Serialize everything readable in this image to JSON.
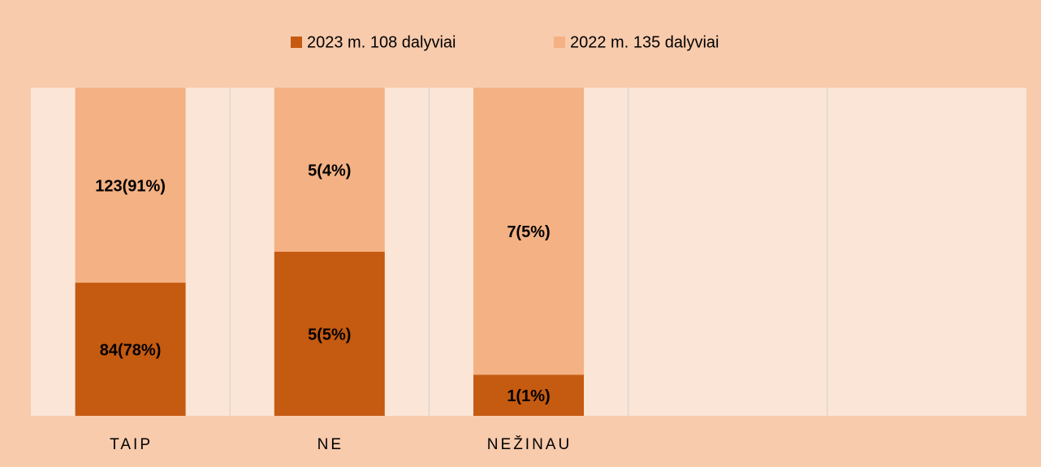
{
  "chart_data": {
    "type": "bar",
    "stacking": "percent",
    "categories": [
      "TAIP",
      "NE",
      "NEŽINAU",
      null,
      null
    ],
    "series": [
      {
        "name": "2023 m. 108 dalyviai",
        "color": "#c55a11",
        "values": [
          84,
          5,
          1,
          null,
          null
        ],
        "value_labels": [
          "84(78%)",
          "5(5%)",
          "1(1%)",
          null,
          null
        ]
      },
      {
        "name": "2022 m. 135 dalyviai",
        "color": "#f4b183",
        "values": [
          123,
          5,
          7,
          null,
          null
        ],
        "value_labels": [
          "123(91%)",
          "5(4%)",
          "7(5%)",
          null,
          null
        ]
      }
    ],
    "legend": "top",
    "grid": true
  }
}
